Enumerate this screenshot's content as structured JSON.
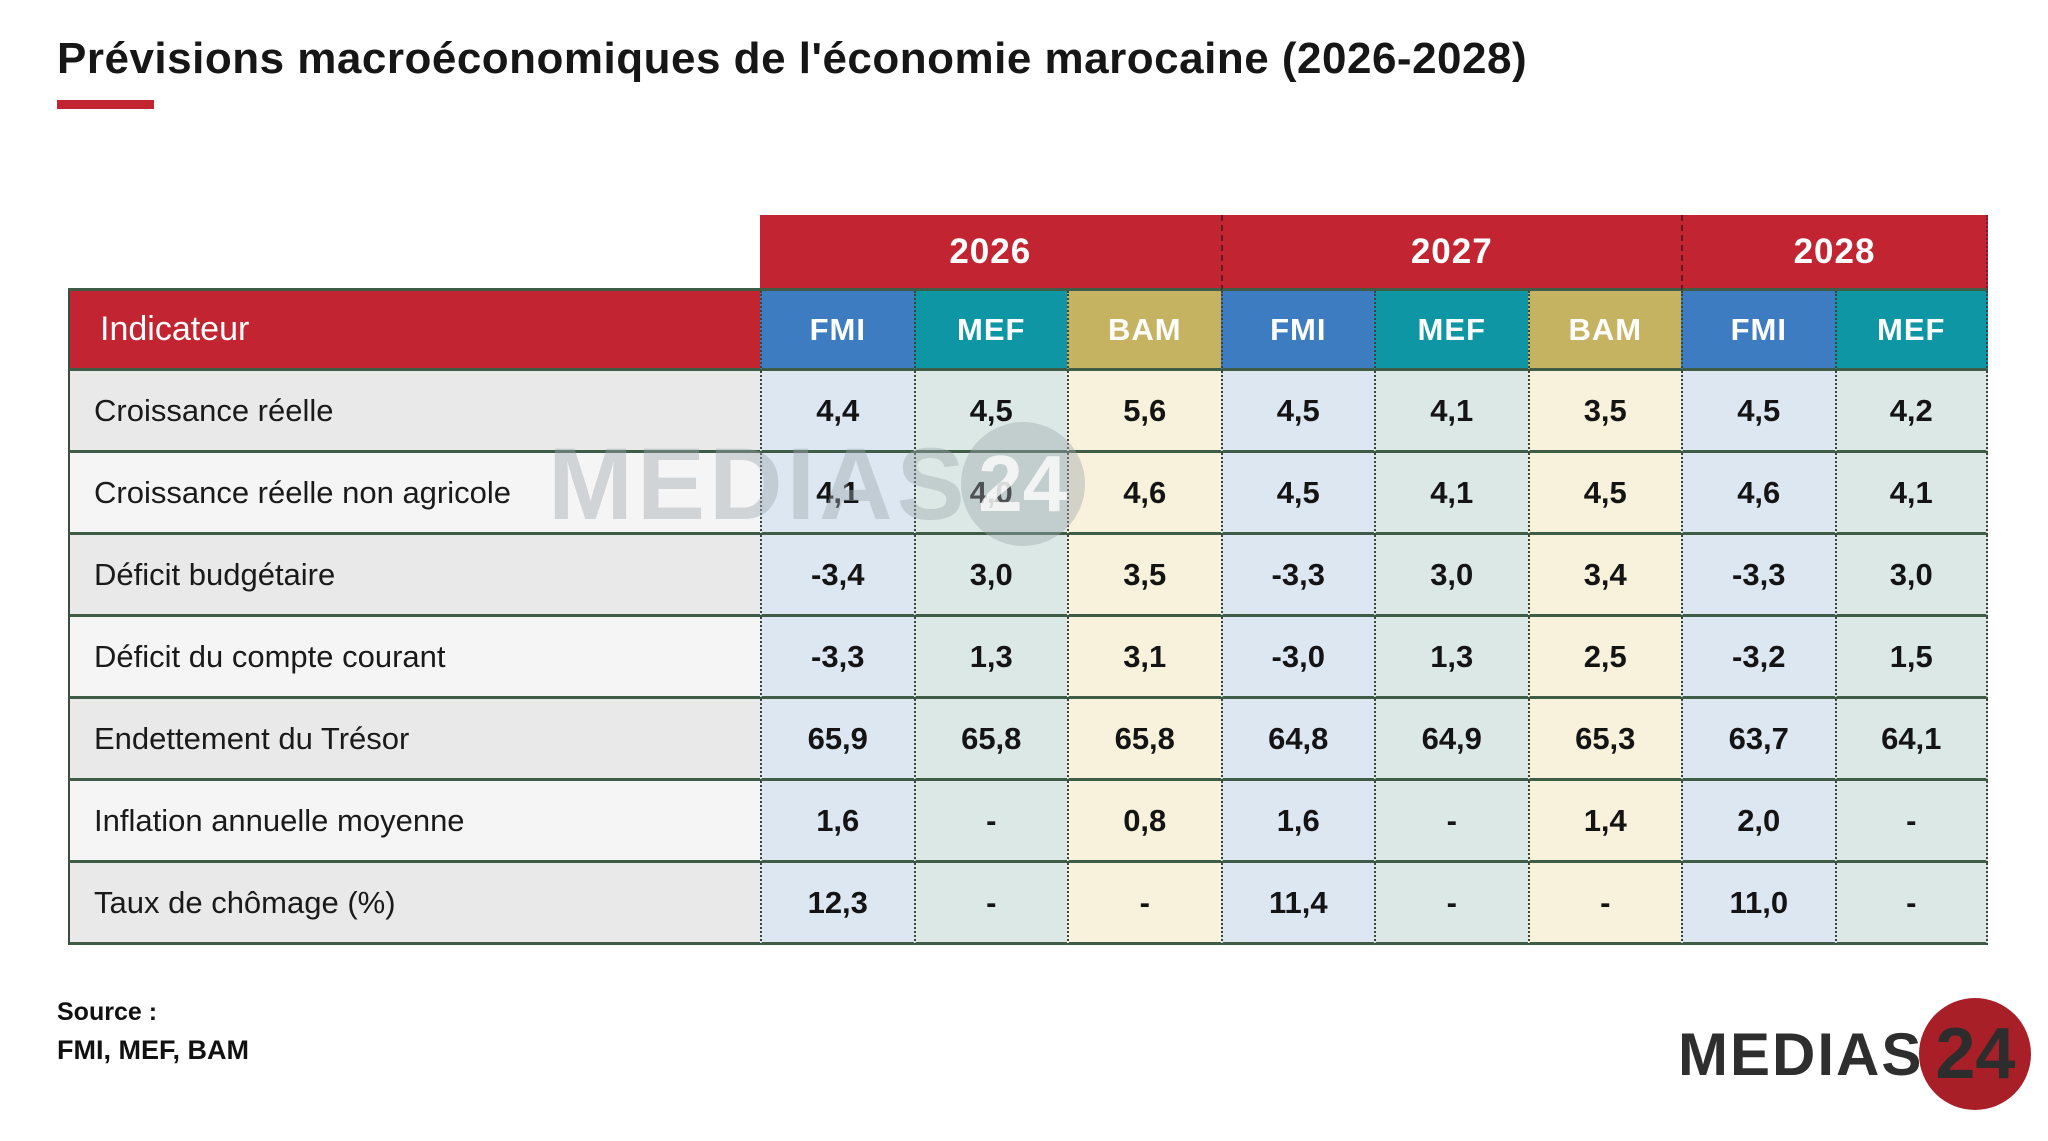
{
  "title": "Prévisions macroéconomiques de l'économie marocaine (2026-2028)",
  "chart_data": {
    "type": "table",
    "title": "Prévisions macroéconomiques de l'économie marocaine (2026-2028)",
    "row_header_label": "Indicateur",
    "year_groups": [
      {
        "label": "2026",
        "orgs": [
          "FMI",
          "MEF",
          "BAM"
        ]
      },
      {
        "label": "2027",
        "orgs": [
          "FMI",
          "MEF",
          "BAM"
        ]
      },
      {
        "label": "2028",
        "orgs": [
          "FMI",
          "MEF"
        ]
      }
    ],
    "column_org_order": [
      "FMI",
      "MEF",
      "BAM",
      "FMI",
      "MEF",
      "BAM",
      "FMI",
      "MEF"
    ],
    "rows": [
      {
        "label": "Croissance réelle",
        "values": [
          "4,4",
          "4,5",
          "5,6",
          "4,5",
          "4,1",
          "3,5",
          "4,5",
          "4,2"
        ]
      },
      {
        "label": "Croissance réelle non agricole",
        "values": [
          "4,1",
          "4,0",
          "4,6",
          "4,5",
          "4,1",
          "4,5",
          "4,6",
          "4,1"
        ]
      },
      {
        "label": "Déficit budgétaire",
        "values": [
          "-3,4",
          "3,0",
          "3,5",
          "-3,3",
          "3,0",
          "3,4",
          "-3,3",
          "3,0"
        ]
      },
      {
        "label": "Déficit du compte courant",
        "values": [
          "-3,3",
          "1,3",
          "3,1",
          "-3,0",
          "1,3",
          "2,5",
          "-3,2",
          "1,5"
        ]
      },
      {
        "label": "Endettement du Trésor",
        "values": [
          "65,9",
          "65,8",
          "65,8",
          "64,8",
          "64,9",
          "65,3",
          "63,7",
          "64,1"
        ]
      },
      {
        "label": "Inflation annuelle moyenne",
        "values": [
          "1,6",
          "-",
          "0,8",
          "1,6",
          "-",
          "1,4",
          "2,0",
          "-"
        ]
      },
      {
        "label": "Taux de chômage (%)",
        "values": [
          "12,3",
          "-",
          "-",
          "11,4",
          "-",
          "-",
          "11,0",
          "-"
        ]
      }
    ]
  },
  "watermark": {
    "text": "MEDIAS",
    "number": "24"
  },
  "footer": {
    "source_label": "Source :",
    "source_value": "FMI, MEF, BAM"
  },
  "logo": {
    "text": "MEDIAS",
    "number": "24"
  },
  "colors": {
    "red": "#c22531",
    "green": "#3f5c46",
    "fmi": "#3d7cc0",
    "mef": "#0f96a5",
    "bam": "#c6b361",
    "fmi_cell": "#dde7f1",
    "mef_cell": "#dce8e5",
    "bam_cell": "#f8f2dc"
  }
}
